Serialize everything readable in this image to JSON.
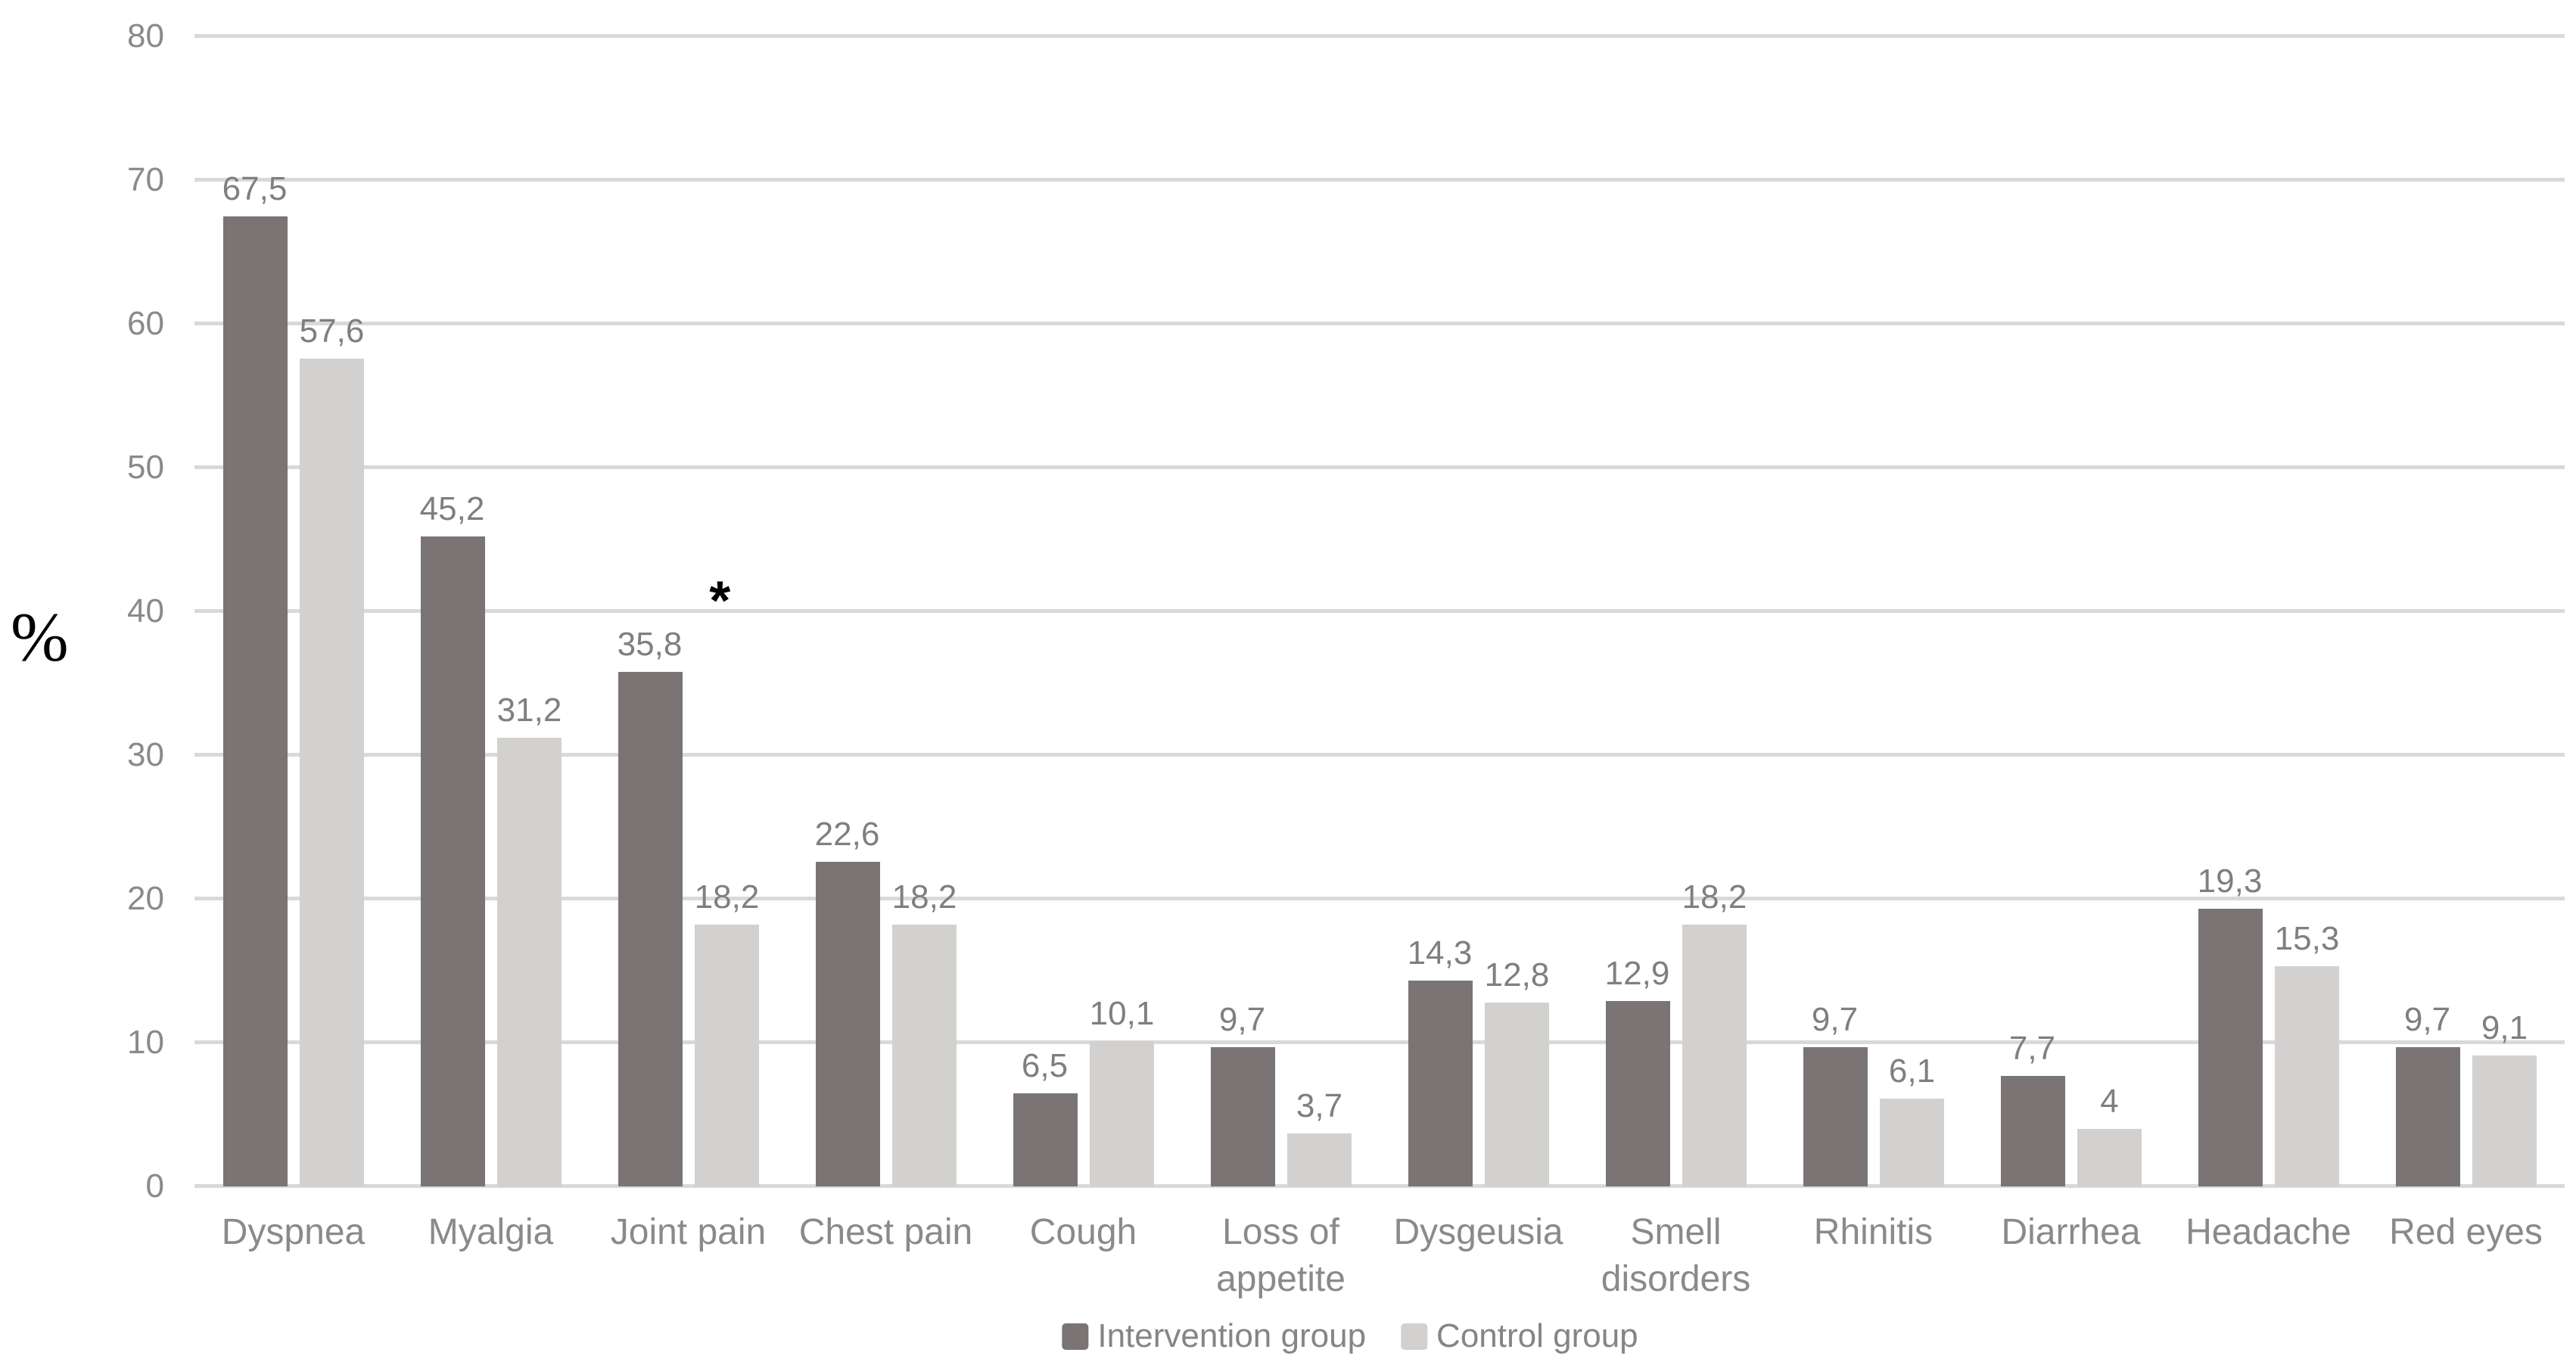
{
  "chart_data": {
    "type": "bar",
    "title": "",
    "xlabel": "",
    "ylabel": "%",
    "ylim": [
      0,
      80
    ],
    "yticks": [
      0,
      10,
      20,
      30,
      40,
      50,
      60,
      70,
      80
    ],
    "grid": true,
    "legend_position": "bottom",
    "background_color": "#ffffff",
    "gridline_color": "#d9d9d9",
    "tick_text_color": "#8a8a8a",
    "data_label_color": "#7f7f7f",
    "categories": [
      "Dyspnea",
      "Myalgia",
      "Joint pain",
      "Chest pain",
      "Cough",
      "Loss of appetite",
      "Dysgeusia",
      "Smell disorders",
      "Rhinitis",
      "Diarrhea",
      "Headache",
      "Red eyes"
    ],
    "series": [
      {
        "name": "Intervention group",
        "color": "#7a7474",
        "values": [
          67.5,
          45.2,
          35.8,
          22.6,
          6.5,
          9.7,
          14.3,
          12.9,
          9.7,
          7.7,
          19.3,
          9.7
        ],
        "display": [
          "67,5",
          "45,2",
          "35,8",
          "22,6",
          "6,5",
          "9,7",
          "14,3",
          "12,9",
          "9,7",
          "7,7",
          "19,3",
          "9,7"
        ]
      },
      {
        "name": "Control group",
        "color": "#d3d1cf",
        "values": [
          57.6,
          31.2,
          18.2,
          18.2,
          10.1,
          3.7,
          12.8,
          18.2,
          6.1,
          4,
          15.3,
          9.1
        ],
        "display": [
          "57,6",
          "31,2",
          "18,2",
          "18,2",
          "10,1",
          "3,7",
          "12,8",
          "18,2",
          "6,1",
          "4",
          "15,3",
          "9,1"
        ]
      }
    ],
    "annotations": [
      {
        "text": "*",
        "category_index": 2,
        "y": 41.5,
        "x_fraction": 0.66
      }
    ]
  }
}
